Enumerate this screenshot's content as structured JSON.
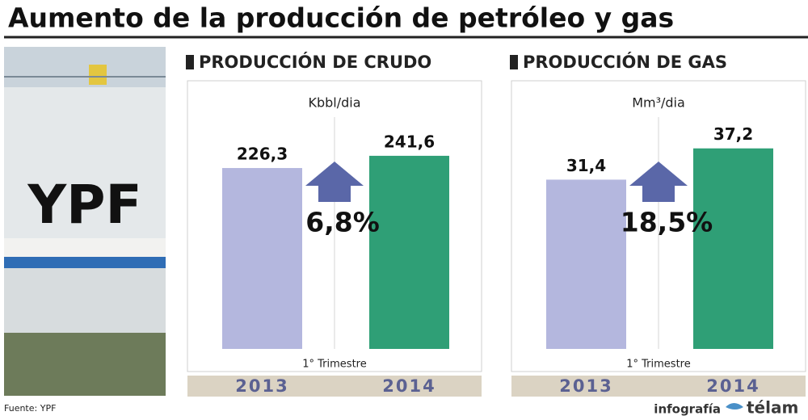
{
  "title": "Aumento de la producción de petróleo y gas",
  "photo_text": "YPF",
  "source": "Fuente: YPF",
  "credit_prefix": "infografía",
  "credit_brand": "télam",
  "chart_data": [
    {
      "type": "bar",
      "title": "PRODUCCIÓN DE CRUDO",
      "unit": "Kbbl/dia",
      "xlabel": "1° Trimestre",
      "categories": [
        "2013",
        "2014"
      ],
      "values": [
        226.3,
        241.6
      ],
      "value_labels": [
        "226,3",
        "241,6"
      ],
      "colors": [
        "#b4b7de",
        "#2f9f76"
      ],
      "annotation": "6,8%",
      "ylim": [
        0,
        290
      ]
    },
    {
      "type": "bar",
      "title": "PRODUCCIÓN DE GAS",
      "unit": "Mm³/dia",
      "xlabel": "1° Trimestre",
      "categories": [
        "2013",
        "2014"
      ],
      "values": [
        31.4,
        37.2
      ],
      "value_labels": [
        "31,4",
        "37,2"
      ],
      "colors": [
        "#b4b7de",
        "#2f9f76"
      ],
      "annotation": "18,5%",
      "ylim": [
        0,
        43
      ]
    }
  ]
}
